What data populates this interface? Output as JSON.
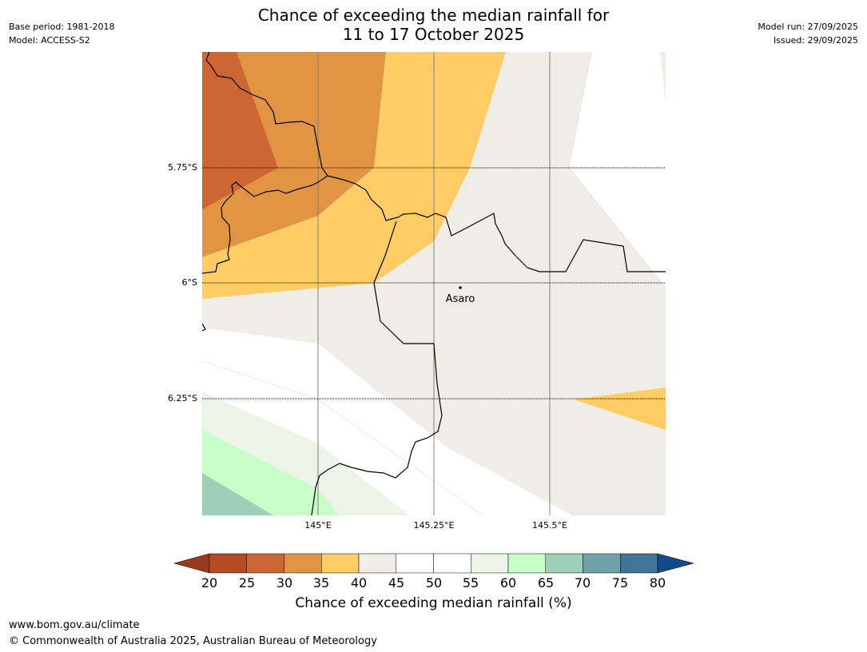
{
  "header": {
    "title_line1": "Chance of exceeding the median rainfall for",
    "title_line2": "11 to 17 October 2025",
    "base_period": "Base period: 1981-2018",
    "model": "Model: ACCESS-S2",
    "model_run": "Model run: 27/09/2025",
    "issued": "Issued: 29/09/2025"
  },
  "map": {
    "place_label": "Asaro",
    "lat_ticks": [
      "5.75°S",
      "6°S",
      "6.25°S"
    ],
    "lon_ticks": [
      "145°E",
      "145.25°E",
      "145.5°E"
    ]
  },
  "colorbar": {
    "ticks": [
      "20",
      "25",
      "30",
      "35",
      "40",
      "45",
      "50",
      "55",
      "60",
      "65",
      "70",
      "75",
      "80"
    ],
    "title": "Chance of exceeding median rainfall (%)",
    "colors": {
      "under": "#983a20",
      "b20_25": "#b54a25",
      "b25_30": "#cd6632",
      "b30_35": "#e29445",
      "b35_40": "#ffcc66",
      "b40_45": "#f0ece6",
      "b45_55": "#ffffff",
      "b55_60": "#eaf5e8",
      "b60_65": "#c8fdc8",
      "b65_70": "#9ecfb9",
      "b70_75": "#6fa3a7",
      "b75_80": "#3f7597",
      "over": "#144a8c"
    }
  },
  "footer": {
    "url": "www.bom.gov.au/climate",
    "copyright": "© Commonwealth of Australia 2025, Australian Bureau of Meteorology"
  }
}
